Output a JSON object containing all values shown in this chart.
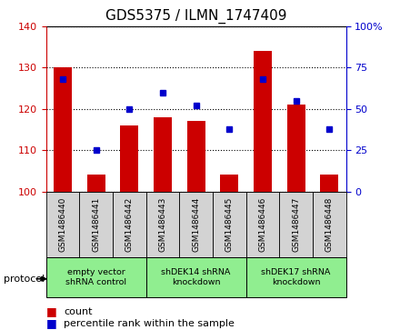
{
  "title": "GDS5375 / ILMN_1747409",
  "samples": [
    "GSM1486440",
    "GSM1486441",
    "GSM1486442",
    "GSM1486443",
    "GSM1486444",
    "GSM1486445",
    "GSM1486446",
    "GSM1486447",
    "GSM1486448"
  ],
  "counts": [
    130,
    104,
    116,
    118,
    117,
    104,
    134,
    121,
    104
  ],
  "percentiles": [
    68,
    25,
    50,
    60,
    52,
    38,
    68,
    55,
    38
  ],
  "ylim_left": [
    100,
    140
  ],
  "ylim_right": [
    0,
    100
  ],
  "yticks_left": [
    100,
    110,
    120,
    130,
    140
  ],
  "yticks_right": [
    0,
    25,
    50,
    75,
    100
  ],
  "bar_color": "#cc0000",
  "dot_color": "#0000cc",
  "bar_width": 0.55,
  "groups": [
    {
      "label": "empty vector\nshRNA control",
      "start": 0,
      "end": 2,
      "color": "#90ee90"
    },
    {
      "label": "shDEK14 shRNA\nknockdown",
      "start": 3,
      "end": 5,
      "color": "#90ee90"
    },
    {
      "label": "shDEK17 shRNA\nknockdown",
      "start": 6,
      "end": 8,
      "color": "#90ee90"
    }
  ],
  "protocol_label": "protocol",
  "legend_count_label": "count",
  "legend_pct_label": "percentile rank within the sample",
  "tick_label_color_left": "#cc0000",
  "tick_label_color_right": "#0000cc",
  "xlabel_area_bg": "#d3d3d3",
  "grid_color": "#000000"
}
